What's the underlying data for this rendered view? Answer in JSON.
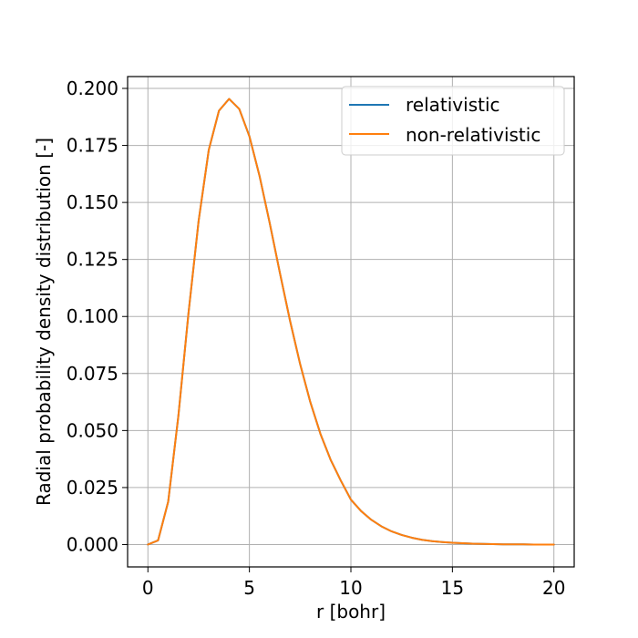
{
  "chart_data": {
    "type": "line",
    "title": "",
    "xlabel": "r [bohr]",
    "ylabel": "Radial probability density distribution [-]",
    "xlim": [
      -1,
      21
    ],
    "ylim": [
      -0.0098,
      0.2052
    ],
    "xticks": [
      0,
      5,
      10,
      15,
      20
    ],
    "xtick_labels": [
      "0",
      "5",
      "10",
      "15",
      "20"
    ],
    "yticks": [
      0.0,
      0.025,
      0.05,
      0.075,
      0.1,
      0.125,
      0.15,
      0.175,
      0.2
    ],
    "ytick_labels": [
      "0.000",
      "0.025",
      "0.050",
      "0.075",
      "0.100",
      "0.125",
      "0.150",
      "0.175",
      "0.200"
    ],
    "grid": true,
    "legend_position": "top-right",
    "colors": {
      "relativistic": "#1f77b4",
      "non_relativistic": "#ff7f0e"
    },
    "x": [
      0,
      0.5,
      1,
      1.5,
      2,
      2.5,
      3,
      3.5,
      4,
      4.5,
      5,
      5.5,
      6,
      6.5,
      7,
      7.5,
      8,
      8.5,
      9,
      9.5,
      10,
      10.5,
      11,
      11.5,
      12,
      12.5,
      13,
      13.5,
      14,
      14.5,
      15,
      15.5,
      16,
      16.5,
      17,
      17.5,
      18,
      18.5,
      19,
      19.5,
      20
    ],
    "series": [
      {
        "name": "relativistic",
        "values": [
          0.0,
          0.0018,
          0.0188,
          0.0563,
          0.1015,
          0.142,
          0.1731,
          0.1902,
          0.1954,
          0.191,
          0.179,
          0.1616,
          0.141,
          0.1192,
          0.0982,
          0.0791,
          0.0625,
          0.0485,
          0.0372,
          0.0281,
          0.0197,
          0.0147,
          0.0109,
          0.008,
          0.0058,
          0.0042,
          0.003,
          0.0021,
          0.0015,
          0.0011,
          0.0008,
          0.0006,
          0.0004,
          0.0003,
          0.0002,
          0.0001,
          0.0001,
          0.0001,
          0.0,
          0.0,
          0.0
        ]
      },
      {
        "name": "non-relativistic",
        "values": [
          0.0,
          0.0018,
          0.0188,
          0.0563,
          0.1015,
          0.142,
          0.1731,
          0.1902,
          0.1954,
          0.191,
          0.179,
          0.1616,
          0.141,
          0.1192,
          0.0982,
          0.0791,
          0.0625,
          0.0485,
          0.0372,
          0.0281,
          0.0197,
          0.0147,
          0.0109,
          0.008,
          0.0058,
          0.0042,
          0.003,
          0.0021,
          0.0015,
          0.0011,
          0.0008,
          0.0006,
          0.0004,
          0.0003,
          0.0002,
          0.0001,
          0.0001,
          0.0001,
          0.0,
          0.0,
          0.0
        ]
      }
    ]
  }
}
